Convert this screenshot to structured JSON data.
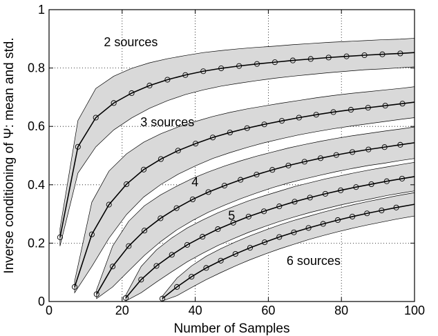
{
  "chart_data": {
    "type": "line",
    "xlabel": "Number of Samples",
    "ylabel": "Inverse conditioning of Ψ: mean and std.",
    "xlim": [
      0,
      100
    ],
    "ylim": [
      0,
      1
    ],
    "xticks": [
      0,
      20,
      40,
      60,
      80,
      100
    ],
    "yticks": [
      0,
      0.2,
      0.4,
      0.6,
      0.8,
      1
    ],
    "xtick_labels": [
      "0",
      "20",
      "40",
      "60",
      "80",
      "100"
    ],
    "ytick_labels": [
      "0",
      "0.2",
      "0.4",
      "0.6",
      "0.8",
      "1"
    ],
    "grid": true,
    "grid_style": "dotted",
    "colors": {
      "band_fill": "#d9d9d9",
      "line": "#000000",
      "marker_edge": "#000000"
    },
    "series": [
      {
        "x": [
          3,
          7.9,
          12.8,
          17.7,
          22.6,
          27.5,
          32.4,
          37.3,
          42.2,
          47.1,
          52,
          56.9,
          61.8,
          66.7,
          71.6,
          76.5,
          81.4,
          86.3,
          91.2,
          96.1,
          100
        ],
        "y": [
          0.22,
          0.53,
          0.63,
          0.68,
          0.714,
          0.74,
          0.76,
          0.776,
          0.789,
          0.799,
          0.807,
          0.814,
          0.82,
          0.826,
          0.831,
          0.836,
          0.84,
          0.844,
          0.847,
          0.85,
          0.853
        ],
        "std": [
          0.03,
          0.09,
          0.1,
          0.092,
          0.085,
          0.078,
          0.072,
          0.067,
          0.064,
          0.061,
          0.059,
          0.057,
          0.055,
          0.054,
          0.053,
          0.052,
          0.051,
          0.05,
          0.05,
          0.049,
          0.049
        ]
      },
      {
        "x": [
          7,
          11.7,
          16.4,
          21.2,
          25.9,
          30.6,
          35.3,
          40.1,
          44.8,
          49.5,
          54.2,
          58.9,
          63.7,
          68.4,
          73.1,
          77.8,
          82.6,
          87.3,
          92,
          96.7,
          100
        ],
        "y": [
          0.05,
          0.23,
          0.332,
          0.402,
          0.452,
          0.488,
          0.517,
          0.541,
          0.562,
          0.579,
          0.594,
          0.607,
          0.619,
          0.63,
          0.64,
          0.649,
          0.657,
          0.664,
          0.671,
          0.678,
          0.683
        ],
        "std": [
          0.02,
          0.11,
          0.115,
          0.104,
          0.094,
          0.087,
          0.081,
          0.076,
          0.072,
          0.069,
          0.066,
          0.063,
          0.061,
          0.059,
          0.058,
          0.057,
          0.056,
          0.055,
          0.054,
          0.053,
          0.053
        ]
      },
      {
        "x": [
          13,
          17.4,
          21.8,
          26.1,
          30.5,
          34.9,
          39.3,
          43.6,
          48,
          52.4,
          56.8,
          61.1,
          65.5,
          69.9,
          74.3,
          78.6,
          83,
          87.4,
          91.8,
          96.1,
          100
        ],
        "y": [
          0.025,
          0.12,
          0.19,
          0.243,
          0.285,
          0.32,
          0.35,
          0.375,
          0.397,
          0.417,
          0.435,
          0.451,
          0.466,
          0.479,
          0.491,
          0.502,
          0.512,
          0.521,
          0.529,
          0.537,
          0.544
        ],
        "std": [
          0.015,
          0.07,
          0.085,
          0.085,
          0.08,
          0.075,
          0.072,
          0.069,
          0.067,
          0.065,
          0.063,
          0.061,
          0.06,
          0.059,
          0.058,
          0.057,
          0.056,
          0.055,
          0.055,
          0.054,
          0.054
        ]
      },
      {
        "x": [
          21,
          25.2,
          29.4,
          33.6,
          37.8,
          42,
          46.2,
          50.4,
          54.6,
          58.8,
          63,
          67.2,
          71.4,
          75.6,
          79.8,
          84,
          88.2,
          92.4,
          96.6,
          100
        ],
        "y": [
          0.012,
          0.075,
          0.122,
          0.16,
          0.194,
          0.222,
          0.248,
          0.27,
          0.291,
          0.309,
          0.326,
          0.342,
          0.356,
          0.369,
          0.381,
          0.392,
          0.402,
          0.412,
          0.421,
          0.428
        ],
        "std": [
          0.01,
          0.045,
          0.055,
          0.058,
          0.058,
          0.057,
          0.056,
          0.055,
          0.054,
          0.053,
          0.052,
          0.052,
          0.051,
          0.051,
          0.05,
          0.05,
          0.05,
          0.049,
          0.049,
          0.049
        ]
      },
      {
        "x": [
          31,
          35,
          39,
          43,
          47,
          51,
          55,
          59,
          63,
          67,
          71,
          75,
          79,
          83,
          87,
          91,
          95,
          100
        ],
        "y": [
          0.01,
          0.05,
          0.085,
          0.115,
          0.14,
          0.163,
          0.184,
          0.203,
          0.221,
          0.237,
          0.252,
          0.266,
          0.279,
          0.291,
          0.302,
          0.312,
          0.322,
          0.333
        ],
        "std": [
          0.008,
          0.03,
          0.037,
          0.04,
          0.041,
          0.041,
          0.041,
          0.041,
          0.041,
          0.041,
          0.04,
          0.04,
          0.04,
          0.04,
          0.04,
          0.04,
          0.04,
          0.04
        ]
      }
    ],
    "annotations": [
      {
        "text": "2 sources",
        "x": 15,
        "y": 0.875
      },
      {
        "text": "3 sources",
        "x": 25,
        "y": 0.6
      },
      {
        "text": "4",
        "x": 39,
        "y": 0.395
      },
      {
        "text": "5",
        "x": 49,
        "y": 0.28
      },
      {
        "text": "6 sources",
        "x": 65,
        "y": 0.125
      }
    ]
  }
}
